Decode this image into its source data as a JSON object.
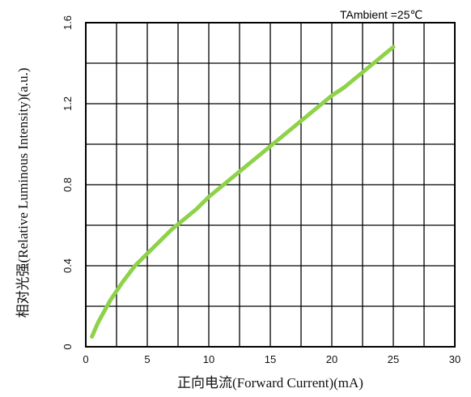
{
  "chart_data": {
    "type": "line",
    "xlabel": "正向电流(Forward Current)(mA)",
    "ylabel": "相对光强(Relative Luminous Intensity)(a.u.)",
    "annotation": "TAmbient =25℃",
    "xlim": [
      0,
      30
    ],
    "ylim": [
      0,
      1.6
    ],
    "x_ticks": [
      0,
      5,
      10,
      15,
      20,
      25,
      30
    ],
    "x_tick_labels": [
      "0",
      "5",
      "10",
      "15",
      "20",
      "25",
      "30"
    ],
    "y_ticks": [
      0,
      0.4,
      0.8,
      1.2,
      1.6
    ],
    "y_tick_labels": [
      "0",
      "0.4",
      "0.8",
      "1.2",
      "1.6"
    ],
    "grid": true,
    "series_color": "#8ed24a",
    "x": [
      0.5,
      1,
      2,
      3,
      4,
      5,
      6,
      7,
      8,
      9,
      10,
      11,
      12,
      13,
      14,
      15,
      16,
      17,
      18,
      19,
      20,
      21,
      22,
      23,
      24,
      25
    ],
    "y": [
      0.05,
      0.12,
      0.23,
      0.32,
      0.4,
      0.46,
      0.52,
      0.58,
      0.63,
      0.68,
      0.74,
      0.79,
      0.84,
      0.89,
      0.94,
      0.99,
      1.04,
      1.09,
      1.14,
      1.19,
      1.24,
      1.28,
      1.33,
      1.38,
      1.43,
      1.48
    ]
  }
}
